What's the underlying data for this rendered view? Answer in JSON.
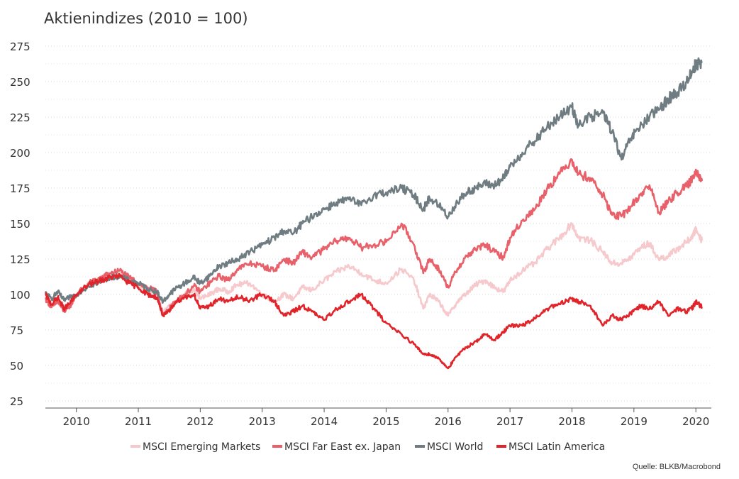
{
  "chart_data": {
    "type": "line",
    "title": "Aktienindizes (2010 = 100)",
    "xlabel": "",
    "ylabel": "",
    "ylim": [
      20,
      280
    ],
    "yticks": [
      25,
      50,
      75,
      100,
      125,
      150,
      175,
      200,
      225,
      250,
      275
    ],
    "xlim": [
      2009.5,
      2020.25
    ],
    "xticks": [
      2010,
      2011,
      2012,
      2013,
      2014,
      2015,
      2016,
      2017,
      2018,
      2019,
      2020
    ],
    "grid": true,
    "legend_position": "bottom",
    "source": "Quelle: BLKB/Macrobond",
    "series": [
      {
        "name": "MSCI Emerging Markets",
        "color": "#f6c9cd",
        "points": [
          [
            2009.5,
            99
          ],
          [
            2009.6,
            92
          ],
          [
            2009.7,
            96
          ],
          [
            2009.8,
            90
          ],
          [
            2009.9,
            93
          ],
          [
            2010.0,
            100
          ],
          [
            2010.2,
            107
          ],
          [
            2010.4,
            110
          ],
          [
            2010.55,
            113
          ],
          [
            2010.7,
            114
          ],
          [
            2010.85,
            110
          ],
          [
            2011.0,
            106
          ],
          [
            2011.15,
            102
          ],
          [
            2011.3,
            100
          ],
          [
            2011.4,
            87
          ],
          [
            2011.5,
            92
          ],
          [
            2011.6,
            95
          ],
          [
            2011.75,
            100
          ],
          [
            2011.9,
            104
          ],
          [
            2012.0,
            97
          ],
          [
            2012.15,
            100
          ],
          [
            2012.3,
            104
          ],
          [
            2012.45,
            102
          ],
          [
            2012.6,
            107
          ],
          [
            2012.8,
            108
          ],
          [
            2013.0,
            100
          ],
          [
            2013.2,
            95
          ],
          [
            2013.35,
            100
          ],
          [
            2013.5,
            97
          ],
          [
            2013.65,
            105
          ],
          [
            2013.8,
            103
          ],
          [
            2014.0,
            110
          ],
          [
            2014.2,
            116
          ],
          [
            2014.4,
            120
          ],
          [
            2014.6,
            115
          ],
          [
            2014.8,
            110
          ],
          [
            2015.0,
            108
          ],
          [
            2015.25,
            118
          ],
          [
            2015.45,
            110
          ],
          [
            2015.6,
            90
          ],
          [
            2015.7,
            100
          ],
          [
            2015.85,
            95
          ],
          [
            2016.0,
            85
          ],
          [
            2016.15,
            95
          ],
          [
            2016.3,
            101
          ],
          [
            2016.45,
            107
          ],
          [
            2016.6,
            110
          ],
          [
            2016.75,
            105
          ],
          [
            2016.9,
            102
          ],
          [
            2017.0,
            110
          ],
          [
            2017.2,
            117
          ],
          [
            2017.4,
            122
          ],
          [
            2017.6,
            132
          ],
          [
            2017.8,
            140
          ],
          [
            2018.0,
            150
          ],
          [
            2018.1,
            140
          ],
          [
            2018.3,
            138
          ],
          [
            2018.5,
            130
          ],
          [
            2018.65,
            122
          ],
          [
            2018.8,
            122
          ],
          [
            2018.95,
            126
          ],
          [
            2019.1,
            133
          ],
          [
            2019.25,
            136
          ],
          [
            2019.4,
            125
          ],
          [
            2019.55,
            127
          ],
          [
            2019.7,
            132
          ],
          [
            2019.85,
            137
          ],
          [
            2019.95,
            141
          ],
          [
            2020.0,
            146
          ],
          [
            2020.1,
            138
          ]
        ]
      },
      {
        "name": "MSCI Far East ex. Japan",
        "color": "#e8606a",
        "points": [
          [
            2009.5,
            97
          ],
          [
            2009.6,
            91
          ],
          [
            2009.7,
            95
          ],
          [
            2009.8,
            88
          ],
          [
            2009.9,
            92
          ],
          [
            2010.0,
            100
          ],
          [
            2010.2,
            108
          ],
          [
            2010.4,
            112
          ],
          [
            2010.55,
            115
          ],
          [
            2010.7,
            117
          ],
          [
            2010.85,
            112
          ],
          [
            2011.0,
            108
          ],
          [
            2011.15,
            105
          ],
          [
            2011.3,
            102
          ],
          [
            2011.4,
            85
          ],
          [
            2011.5,
            90
          ],
          [
            2011.6,
            95
          ],
          [
            2011.75,
            100
          ],
          [
            2011.9,
            106
          ],
          [
            2012.0,
            102
          ],
          [
            2012.15,
            108
          ],
          [
            2012.3,
            113
          ],
          [
            2012.45,
            110
          ],
          [
            2012.6,
            118
          ],
          [
            2012.8,
            122
          ],
          [
            2013.0,
            120
          ],
          [
            2013.2,
            117
          ],
          [
            2013.35,
            125
          ],
          [
            2013.5,
            122
          ],
          [
            2013.65,
            130
          ],
          [
            2013.8,
            126
          ],
          [
            2014.0,
            132
          ],
          [
            2014.2,
            138
          ],
          [
            2014.4,
            140
          ],
          [
            2014.6,
            133
          ],
          [
            2014.8,
            135
          ],
          [
            2015.0,
            137
          ],
          [
            2015.25,
            150
          ],
          [
            2015.45,
            135
          ],
          [
            2015.6,
            115
          ],
          [
            2015.7,
            125
          ],
          [
            2015.85,
            118
          ],
          [
            2016.0,
            105
          ],
          [
            2016.15,
            118
          ],
          [
            2016.3,
            127
          ],
          [
            2016.45,
            132
          ],
          [
            2016.6,
            135
          ],
          [
            2016.75,
            130
          ],
          [
            2016.9,
            126
          ],
          [
            2017.0,
            140
          ],
          [
            2017.2,
            152
          ],
          [
            2017.4,
            160
          ],
          [
            2017.6,
            175
          ],
          [
            2017.8,
            185
          ],
          [
            2018.0,
            195
          ],
          [
            2018.1,
            185
          ],
          [
            2018.3,
            182
          ],
          [
            2018.5,
            170
          ],
          [
            2018.65,
            156
          ],
          [
            2018.8,
            155
          ],
          [
            2018.95,
            162
          ],
          [
            2019.1,
            170
          ],
          [
            2019.25,
            177
          ],
          [
            2019.4,
            158
          ],
          [
            2019.55,
            165
          ],
          [
            2019.7,
            172
          ],
          [
            2019.85,
            176
          ],
          [
            2019.95,
            182
          ],
          [
            2020.0,
            188
          ],
          [
            2020.1,
            180
          ]
        ]
      },
      {
        "name": "MSCI World",
        "color": "#6f7d82",
        "points": [
          [
            2009.5,
            101
          ],
          [
            2009.6,
            97
          ],
          [
            2009.7,
            102
          ],
          [
            2009.8,
            96
          ],
          [
            2009.9,
            98
          ],
          [
            2010.0,
            100
          ],
          [
            2010.2,
            106
          ],
          [
            2010.4,
            109
          ],
          [
            2010.55,
            112
          ],
          [
            2010.7,
            113
          ],
          [
            2010.85,
            110
          ],
          [
            2011.0,
            108
          ],
          [
            2011.15,
            104
          ],
          [
            2011.3,
            102
          ],
          [
            2011.4,
            95
          ],
          [
            2011.5,
            100
          ],
          [
            2011.6,
            104
          ],
          [
            2011.75,
            108
          ],
          [
            2011.9,
            112
          ],
          [
            2012.0,
            108
          ],
          [
            2012.15,
            113
          ],
          [
            2012.3,
            120
          ],
          [
            2012.45,
            122
          ],
          [
            2012.6,
            125
          ],
          [
            2012.8,
            130
          ],
          [
            2013.0,
            135
          ],
          [
            2013.2,
            140
          ],
          [
            2013.35,
            145
          ],
          [
            2013.5,
            143
          ],
          [
            2013.65,
            150
          ],
          [
            2013.8,
            155
          ],
          [
            2014.0,
            160
          ],
          [
            2014.2,
            165
          ],
          [
            2014.4,
            167
          ],
          [
            2014.6,
            163
          ],
          [
            2014.8,
            170
          ],
          [
            2015.0,
            172
          ],
          [
            2015.25,
            175
          ],
          [
            2015.45,
            170
          ],
          [
            2015.6,
            160
          ],
          [
            2015.7,
            168
          ],
          [
            2015.85,
            163
          ],
          [
            2016.0,
            155
          ],
          [
            2016.15,
            165
          ],
          [
            2016.3,
            172
          ],
          [
            2016.45,
            175
          ],
          [
            2016.6,
            178
          ],
          [
            2016.75,
            177
          ],
          [
            2016.9,
            182
          ],
          [
            2017.0,
            190
          ],
          [
            2017.2,
            200
          ],
          [
            2017.4,
            208
          ],
          [
            2017.6,
            218
          ],
          [
            2017.8,
            225
          ],
          [
            2018.0,
            232
          ],
          [
            2018.1,
            220
          ],
          [
            2018.3,
            225
          ],
          [
            2018.5,
            228
          ],
          [
            2018.65,
            215
          ],
          [
            2018.8,
            195
          ],
          [
            2018.95,
            210
          ],
          [
            2019.1,
            218
          ],
          [
            2019.25,
            225
          ],
          [
            2019.4,
            230
          ],
          [
            2019.55,
            238
          ],
          [
            2019.7,
            242
          ],
          [
            2019.85,
            250
          ],
          [
            2019.95,
            258
          ],
          [
            2020.0,
            262
          ],
          [
            2020.1,
            264
          ]
        ]
      },
      {
        "name": "MSCI Latin America",
        "color": "#e0242a",
        "points": [
          [
            2009.5,
            100
          ],
          [
            2009.6,
            93
          ],
          [
            2009.7,
            98
          ],
          [
            2009.8,
            90
          ],
          [
            2009.9,
            94
          ],
          [
            2010.0,
            100
          ],
          [
            2010.2,
            107
          ],
          [
            2010.4,
            110
          ],
          [
            2010.55,
            112
          ],
          [
            2010.7,
            113
          ],
          [
            2010.85,
            108
          ],
          [
            2011.0,
            105
          ],
          [
            2011.15,
            100
          ],
          [
            2011.3,
            98
          ],
          [
            2011.4,
            85
          ],
          [
            2011.5,
            88
          ],
          [
            2011.6,
            95
          ],
          [
            2011.75,
            98
          ],
          [
            2011.9,
            100
          ],
          [
            2012.0,
            90
          ],
          [
            2012.15,
            92
          ],
          [
            2012.3,
            97
          ],
          [
            2012.45,
            95
          ],
          [
            2012.6,
            98
          ],
          [
            2012.8,
            96
          ],
          [
            2013.0,
            100
          ],
          [
            2013.2,
            95
          ],
          [
            2013.35,
            85
          ],
          [
            2013.5,
            88
          ],
          [
            2013.65,
            92
          ],
          [
            2013.8,
            88
          ],
          [
            2014.0,
            82
          ],
          [
            2014.2,
            90
          ],
          [
            2014.4,
            95
          ],
          [
            2014.6,
            100
          ],
          [
            2014.8,
            90
          ],
          [
            2015.0,
            80
          ],
          [
            2015.25,
            72
          ],
          [
            2015.45,
            65
          ],
          [
            2015.6,
            58
          ],
          [
            2015.7,
            58
          ],
          [
            2015.85,
            55
          ],
          [
            2016.0,
            48
          ],
          [
            2016.15,
            57
          ],
          [
            2016.3,
            63
          ],
          [
            2016.45,
            67
          ],
          [
            2016.6,
            72
          ],
          [
            2016.75,
            68
          ],
          [
            2016.9,
            74
          ],
          [
            2017.0,
            78
          ],
          [
            2017.2,
            78
          ],
          [
            2017.4,
            83
          ],
          [
            2017.6,
            90
          ],
          [
            2017.8,
            93
          ],
          [
            2018.0,
            97
          ],
          [
            2018.1,
            95
          ],
          [
            2018.3,
            92
          ],
          [
            2018.5,
            78
          ],
          [
            2018.65,
            85
          ],
          [
            2018.8,
            82
          ],
          [
            2018.95,
            87
          ],
          [
            2019.1,
            92
          ],
          [
            2019.25,
            90
          ],
          [
            2019.4,
            95
          ],
          [
            2019.55,
            85
          ],
          [
            2019.7,
            90
          ],
          [
            2019.85,
            88
          ],
          [
            2019.95,
            91
          ],
          [
            2020.0,
            95
          ],
          [
            2020.1,
            91
          ]
        ]
      }
    ]
  }
}
